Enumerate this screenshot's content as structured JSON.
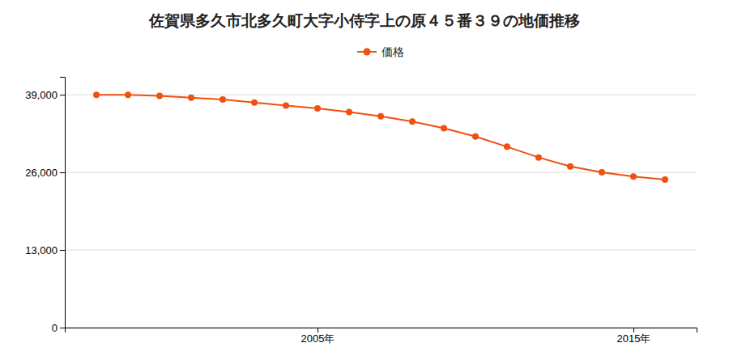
{
  "chart_data": {
    "type": "line",
    "title": "佐賀県多久市北多久町大字小侍字上の原４５番３９の地価推移",
    "x": [
      1998,
      1999,
      2000,
      2001,
      2002,
      2003,
      2004,
      2005,
      2006,
      2007,
      2008,
      2009,
      2010,
      2011,
      2012,
      2013,
      2014,
      2015,
      2016
    ],
    "series": [
      {
        "name": "価格",
        "color": "#f05010",
        "marker": "circle",
        "values": [
          39000,
          39000,
          38800,
          38500,
          38200,
          37700,
          37200,
          36700,
          36100,
          35400,
          34500,
          33400,
          32000,
          30300,
          28500,
          27000,
          26000,
          25300,
          24800
        ]
      }
    ],
    "xlim": [
      1997,
      2017
    ],
    "xticks": [
      {
        "value": 2005,
        "label": "2005年"
      },
      {
        "value": 2015,
        "label": "2015年"
      }
    ],
    "ylim": [
      0,
      42000
    ],
    "yticks": [
      0,
      {
        "value": 13000,
        "label": "13,000"
      },
      {
        "value": 26000,
        "label": "26,000"
      },
      {
        "value": 39000,
        "label": "39,000"
      }
    ],
    "grid": true,
    "legend": "top"
  }
}
